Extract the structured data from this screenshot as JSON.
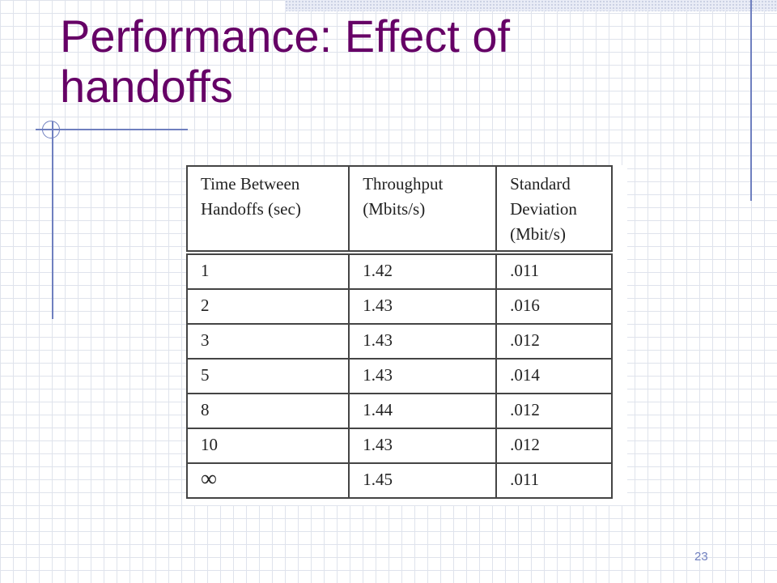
{
  "slide": {
    "title": "Performance: Effect of handoffs",
    "page_number": "23"
  },
  "table": {
    "headers": [
      "Time Between Handoffs (sec)",
      "Throughput (Mbits/s)",
      "Standard Deviation (Mbit/s)"
    ],
    "rows": [
      [
        "1",
        "1.42",
        ".011"
      ],
      [
        "2",
        "1.43",
        ".016"
      ],
      [
        "3",
        "1.43",
        ".012"
      ],
      [
        "5",
        "1.43",
        ".014"
      ],
      [
        "8",
        "1.44",
        ".012"
      ],
      [
        "10",
        "1.43",
        ".012"
      ],
      [
        "∞",
        "1.45",
        ".011"
      ]
    ]
  }
}
